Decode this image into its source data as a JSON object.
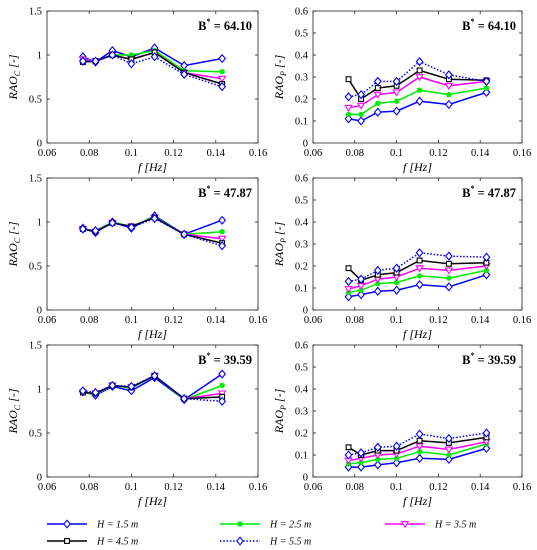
{
  "colors": {
    "H=1.5": "#0000ff",
    "H=2.5": "#00ee00",
    "H=3.5": "#ff00ff",
    "H=4.5": "#000000",
    "H=5.5": "#0000ff"
  },
  "legend": {
    "placement": "bottom",
    "entries": [
      {
        "label": "H = 1.5 m",
        "series": "H=1.5",
        "marker": "diamond",
        "dash": "solid"
      },
      {
        "label": "H = 2.5 m",
        "series": "H=2.5",
        "marker": "circle",
        "dash": "solid"
      },
      {
        "label": "H = 3.5 m",
        "series": "H=3.5",
        "marker": "triangle-down",
        "dash": "solid"
      },
      {
        "label": "H = 4.5 m",
        "series": "H=4.5",
        "marker": "square",
        "dash": "solid"
      },
      {
        "label": "H = 5.5 m",
        "series": "H=5.5",
        "marker": "diamond",
        "dash": "dotted"
      }
    ]
  },
  "chart_data": [
    {
      "type": "line",
      "annotation": "64.10",
      "ylabel": "C",
      "xlabel": "f [Hz]",
      "xlim": [
        0.06,
        0.16
      ],
      "xticks": [
        "0.06",
        "0.08",
        "0.1",
        "0.12",
        "0.14",
        "0.16"
      ],
      "ylim": [
        0,
        1.5
      ],
      "yticks": [
        "0",
        "0.5",
        "1",
        "1.5"
      ],
      "x": [
        0.077,
        0.083,
        0.091,
        0.1,
        0.111,
        0.125,
        0.143
      ],
      "series": [
        {
          "key": "H=1.5",
          "values": [
            0.98,
            0.92,
            1.05,
            0.98,
            1.08,
            0.88,
            0.96
          ]
        },
        {
          "key": "H=2.5",
          "values": [
            0.96,
            0.93,
            1.0,
            1.0,
            1.05,
            0.82,
            0.81
          ]
        },
        {
          "key": "H=3.5",
          "values": [
            0.95,
            0.93,
            1.0,
            0.95,
            1.03,
            0.8,
            0.73
          ]
        },
        {
          "key": "H=4.5",
          "values": [
            0.92,
            0.93,
            1.0,
            0.95,
            1.03,
            0.8,
            0.67
          ]
        },
        {
          "key": "H=5.5",
          "values": [
            0.93,
            0.93,
            1.0,
            0.9,
            0.98,
            0.78,
            0.64
          ]
        }
      ]
    },
    {
      "type": "line",
      "annotation": "64.10",
      "ylabel": "P",
      "xlabel": "f [Hz]",
      "xlim": [
        0.06,
        0.16
      ],
      "xticks": [
        "0.06",
        "0.08",
        "0.1",
        "0.12",
        "0.14",
        "0.16"
      ],
      "ylim": [
        0,
        0.6
      ],
      "yticks": [
        "0",
        "0.1",
        "0.2",
        "0.3",
        "0.4",
        "0.5",
        "0.6"
      ],
      "x": [
        0.077,
        0.083,
        0.091,
        0.1,
        0.111,
        0.125,
        0.143
      ],
      "series": [
        {
          "key": "H=1.5",
          "values": [
            0.11,
            0.1,
            0.14,
            0.145,
            0.19,
            0.175,
            0.23
          ]
        },
        {
          "key": "H=2.5",
          "values": [
            0.13,
            0.13,
            0.18,
            0.19,
            0.24,
            0.22,
            0.25
          ]
        },
        {
          "key": "H=3.5",
          "values": [
            0.16,
            0.17,
            0.22,
            0.23,
            0.3,
            0.26,
            0.28
          ]
        },
        {
          "key": "H=4.5",
          "values": [
            0.29,
            0.2,
            0.25,
            0.26,
            0.33,
            0.29,
            0.285
          ]
        },
        {
          "key": "H=5.5",
          "values": [
            0.21,
            0.22,
            0.28,
            0.28,
            0.37,
            0.31,
            0.28
          ]
        }
      ]
    },
    {
      "type": "line",
      "annotation": "47.87",
      "ylabel": "C",
      "xlabel": "f [Hz]",
      "xlim": [
        0.06,
        0.16
      ],
      "xticks": [
        "0.06",
        "0.08",
        "0.1",
        "0.12",
        "0.14",
        "0.16"
      ],
      "ylim": [
        0,
        1.5
      ],
      "yticks": [
        "0",
        "0.5",
        "1",
        "1.5"
      ],
      "x": [
        0.077,
        0.083,
        0.091,
        0.1,
        0.111,
        0.125,
        0.143
      ],
      "series": [
        {
          "key": "H=1.5",
          "values": [
            0.93,
            0.88,
            1.0,
            0.93,
            1.07,
            0.86,
            1.02
          ]
        },
        {
          "key": "H=2.5",
          "values": [
            0.92,
            0.9,
            1.0,
            0.95,
            1.06,
            0.86,
            0.89
          ]
        },
        {
          "key": "H=3.5",
          "values": [
            0.92,
            0.89,
            0.99,
            0.95,
            1.05,
            0.86,
            0.81
          ]
        },
        {
          "key": "H=4.5",
          "values": [
            0.92,
            0.89,
            0.99,
            0.95,
            1.05,
            0.86,
            0.76
          ]
        },
        {
          "key": "H=5.5",
          "values": [
            0.92,
            0.9,
            0.99,
            0.94,
            1.04,
            0.86,
            0.73
          ]
        }
      ]
    },
    {
      "type": "line",
      "annotation": "47.87",
      "ylabel": "P",
      "xlabel": "f [Hz]",
      "xlim": [
        0.06,
        0.16
      ],
      "xticks": [
        "0.06",
        "0.08",
        "0.1",
        "0.12",
        "0.14",
        "0.16"
      ],
      "ylim": [
        0,
        0.6
      ],
      "yticks": [
        "0",
        "0.1",
        "0.2",
        "0.3",
        "0.4",
        "0.5",
        "0.6"
      ],
      "x": [
        0.077,
        0.083,
        0.091,
        0.1,
        0.111,
        0.125,
        0.143
      ],
      "series": [
        {
          "key": "H=1.5",
          "values": [
            0.06,
            0.07,
            0.085,
            0.09,
            0.115,
            0.105,
            0.16
          ]
        },
        {
          "key": "H=2.5",
          "values": [
            0.08,
            0.09,
            0.12,
            0.125,
            0.155,
            0.145,
            0.18
          ]
        },
        {
          "key": "H=3.5",
          "values": [
            0.095,
            0.11,
            0.14,
            0.15,
            0.19,
            0.18,
            0.2
          ]
        },
        {
          "key": "H=4.5",
          "values": [
            0.19,
            0.135,
            0.16,
            0.17,
            0.225,
            0.21,
            0.215
          ]
        },
        {
          "key": "H=5.5",
          "values": [
            0.13,
            0.14,
            0.18,
            0.19,
            0.26,
            0.245,
            0.24
          ]
        }
      ]
    },
    {
      "type": "line",
      "annotation": "39.59",
      "ylabel": "C",
      "xlabel": "f [Hz]",
      "xlim": [
        0.06,
        0.16
      ],
      "xticks": [
        "0.06",
        "0.08",
        "0.1",
        "0.12",
        "0.14",
        "0.16"
      ],
      "ylim": [
        0,
        1.5
      ],
      "yticks": [
        "0",
        "0.5",
        "1",
        "1.5"
      ],
      "x": [
        0.077,
        0.083,
        0.091,
        0.1,
        0.111,
        0.125,
        0.143
      ],
      "series": [
        {
          "key": "H=1.5",
          "values": [
            0.97,
            0.93,
            1.03,
            0.98,
            1.13,
            0.88,
            1.17
          ]
        },
        {
          "key": "H=2.5",
          "values": [
            0.96,
            0.94,
            1.04,
            1.01,
            1.15,
            0.88,
            1.04
          ]
        },
        {
          "key": "H=3.5",
          "values": [
            0.96,
            0.95,
            1.04,
            1.02,
            1.15,
            0.89,
            0.95
          ]
        },
        {
          "key": "H=4.5",
          "values": [
            0.96,
            0.95,
            1.04,
            1.02,
            1.15,
            0.89,
            0.91
          ]
        },
        {
          "key": "H=5.5",
          "values": [
            0.98,
            0.96,
            1.04,
            1.03,
            1.15,
            0.89,
            0.86
          ]
        }
      ]
    },
    {
      "type": "line",
      "annotation": "39.59",
      "ylabel": "P",
      "xlabel": "f [Hz]",
      "xlim": [
        0.06,
        0.16
      ],
      "xticks": [
        "0.06",
        "0.08",
        "0.1",
        "0.12",
        "0.14",
        "0.16"
      ],
      "ylim": [
        0,
        0.6
      ],
      "yticks": [
        "0",
        "0.1",
        "0.2",
        "0.3",
        "0.4",
        "0.5",
        "0.6"
      ],
      "x": [
        0.077,
        0.083,
        0.091,
        0.1,
        0.111,
        0.125,
        0.143
      ],
      "series": [
        {
          "key": "H=1.5",
          "values": [
            0.045,
            0.045,
            0.055,
            0.065,
            0.085,
            0.08,
            0.13
          ]
        },
        {
          "key": "H=2.5",
          "values": [
            0.06,
            0.065,
            0.08,
            0.085,
            0.115,
            0.1,
            0.15
          ]
        },
        {
          "key": "H=3.5",
          "values": [
            0.075,
            0.085,
            0.1,
            0.105,
            0.14,
            0.125,
            0.16
          ]
        },
        {
          "key": "H=4.5",
          "values": [
            0.135,
            0.1,
            0.12,
            0.12,
            0.165,
            0.155,
            0.18
          ]
        },
        {
          "key": "H=5.5",
          "values": [
            0.1,
            0.11,
            0.135,
            0.14,
            0.195,
            0.175,
            0.2
          ]
        }
      ]
    }
  ]
}
